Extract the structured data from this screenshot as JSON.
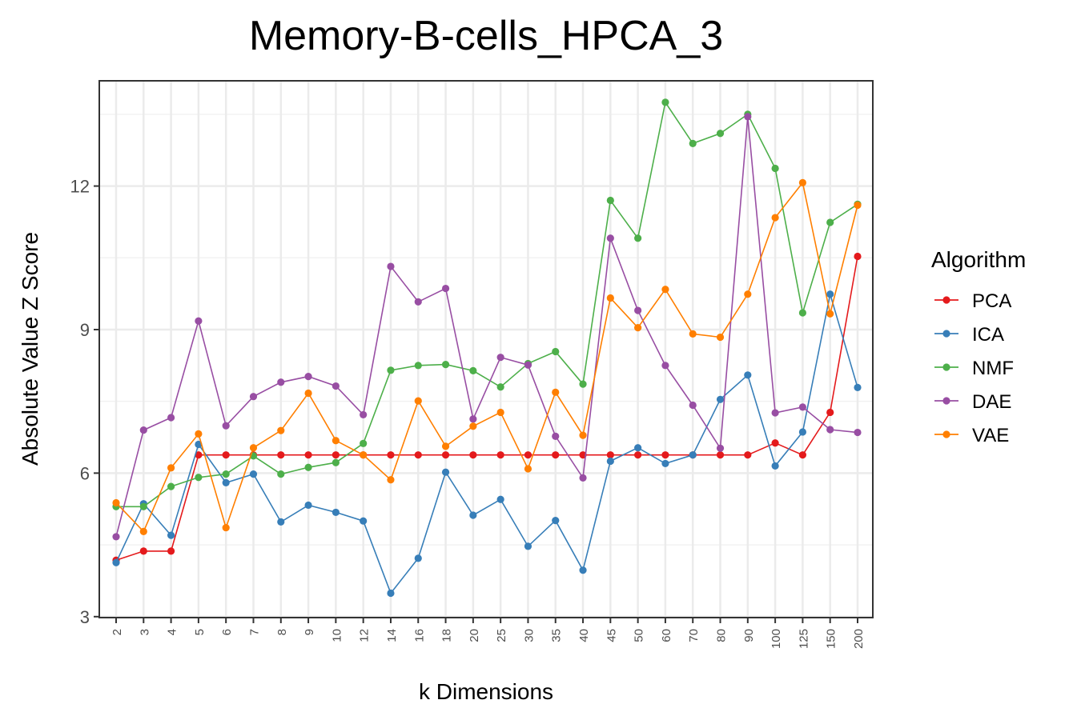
{
  "chart_data": {
    "type": "line",
    "title": "Memory-B-cells_HPCA_3",
    "xlabel": "k Dimensions",
    "ylabel": "Absolute Value Z Score",
    "categories": [
      "2",
      "3",
      "4",
      "5",
      "6",
      "7",
      "8",
      "9",
      "10",
      "12",
      "14",
      "16",
      "18",
      "20",
      "25",
      "30",
      "35",
      "40",
      "45",
      "50",
      "60",
      "70",
      "80",
      "90",
      "100",
      "125",
      "150",
      "200"
    ],
    "ylim": [
      2.98,
      14.2
    ],
    "yticks": [
      3,
      6,
      9,
      12
    ],
    "grid": true,
    "legend_title": "Algorithm",
    "legend_position": "right",
    "series": [
      {
        "name": "PCA",
        "color": "#e41a1c",
        "values": [
          4.18,
          4.37,
          4.37,
          6.38,
          6.38,
          6.38,
          6.38,
          6.38,
          6.38,
          6.38,
          6.38,
          6.38,
          6.38,
          6.38,
          6.38,
          6.38,
          6.38,
          6.38,
          6.38,
          6.38,
          6.38,
          6.38,
          6.38,
          6.38,
          6.63,
          6.38,
          7.27,
          10.53
        ]
      },
      {
        "name": "ICA",
        "color": "#377eb8",
        "values": [
          4.13,
          5.36,
          4.7,
          6.6,
          5.8,
          5.98,
          4.98,
          5.33,
          5.18,
          5.0,
          3.49,
          4.22,
          6.02,
          5.12,
          5.45,
          4.47,
          5.01,
          3.97,
          6.25,
          6.53,
          6.2,
          6.38,
          7.54,
          8.05,
          6.15,
          6.86,
          9.74,
          7.79
        ]
      },
      {
        "name": "NMF",
        "color": "#4daf4a",
        "values": [
          5.3,
          5.3,
          5.72,
          5.91,
          5.98,
          6.36,
          5.98,
          6.12,
          6.22,
          6.62,
          8.15,
          8.25,
          8.27,
          8.14,
          7.8,
          8.29,
          8.54,
          7.86,
          11.7,
          10.91,
          13.75,
          12.89,
          13.1,
          13.5,
          12.37,
          9.35,
          11.24,
          11.62
        ]
      },
      {
        "name": "DAE",
        "color": "#984ea3",
        "values": [
          4.67,
          6.9,
          7.16,
          9.18,
          6.99,
          7.6,
          7.9,
          8.02,
          7.82,
          7.22,
          10.32,
          9.58,
          9.86,
          7.13,
          8.42,
          8.26,
          6.77,
          5.9,
          10.91,
          9.4,
          8.25,
          7.42,
          6.52,
          13.45,
          7.26,
          7.38,
          6.91,
          6.85
        ]
      },
      {
        "name": "VAE",
        "color": "#ff7f00",
        "values": [
          5.38,
          4.78,
          6.11,
          6.82,
          4.86,
          6.53,
          6.89,
          7.67,
          6.68,
          6.38,
          5.86,
          7.51,
          6.56,
          6.98,
          7.27,
          6.09,
          7.69,
          6.79,
          9.66,
          9.04,
          9.84,
          8.91,
          8.84,
          9.74,
          11.34,
          12.07,
          9.33,
          11.6
        ]
      }
    ]
  }
}
